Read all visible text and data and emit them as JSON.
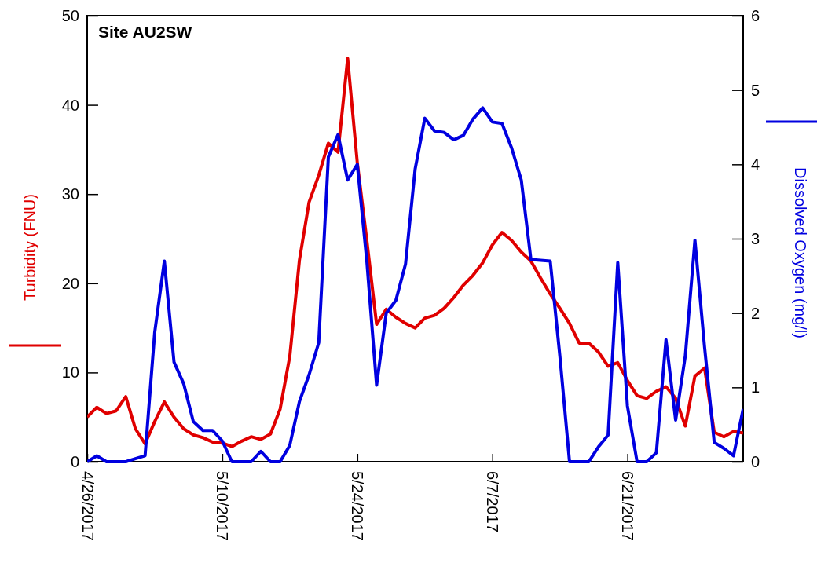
{
  "chart_data": {
    "type": "line",
    "title": "Site AU2SW",
    "ylabel": "Turbidity (FNU)",
    "y2label": "Dissolved Oxygen (mg/l)",
    "x": [
      "2017-04-26",
      "2017-04-27",
      "2017-04-28",
      "2017-04-29",
      "2017-04-30",
      "2017-05-01",
      "2017-05-02",
      "2017-05-03",
      "2017-05-04",
      "2017-05-05",
      "2017-05-06",
      "2017-05-07",
      "2017-05-08",
      "2017-05-09",
      "2017-05-10",
      "2017-05-11",
      "2017-05-12",
      "2017-05-13",
      "2017-05-14",
      "2017-05-15",
      "2017-05-16",
      "2017-05-17",
      "2017-05-18",
      "2017-05-19",
      "2017-05-20",
      "2017-05-21",
      "2017-05-22",
      "2017-05-23",
      "2017-05-24",
      "2017-05-25",
      "2017-05-26",
      "2017-05-27",
      "2017-05-28",
      "2017-05-29",
      "2017-05-30",
      "2017-05-31",
      "2017-06-01",
      "2017-06-02",
      "2017-06-03",
      "2017-06-04",
      "2017-06-05",
      "2017-06-06",
      "2017-06-07",
      "2017-06-08",
      "2017-06-09",
      "2017-06-10",
      "2017-06-11",
      "2017-06-12",
      "2017-06-13",
      "2017-06-14",
      "2017-06-15",
      "2017-06-16",
      "2017-06-17",
      "2017-06-18",
      "2017-06-19",
      "2017-06-20",
      "2017-06-21",
      "2017-06-22",
      "2017-06-23",
      "2017-06-24",
      "2017-06-25",
      "2017-06-26",
      "2017-06-27",
      "2017-06-28",
      "2017-06-29",
      "2017-06-30",
      "2017-07-01",
      "2017-07-02",
      "2017-07-03"
    ],
    "series": [
      {
        "color": "#e00000",
        "values": [
          5.0,
          6.1,
          5.4,
          5.7,
          7.3,
          3.7,
          2.0,
          4.5,
          6.7,
          5.0,
          3.7,
          3.0,
          2.7,
          2.2,
          2.1,
          1.7,
          2.3,
          2.8,
          2.5,
          3.1,
          5.9,
          11.8,
          22.6,
          29.1,
          32.1,
          35.7,
          34.7,
          45.2,
          33.5,
          24.7,
          15.4,
          17.1,
          16.2,
          15.5,
          15.0,
          16.1,
          16.4,
          17.2,
          18.4,
          19.8,
          20.9,
          22.3,
          24.3,
          25.7,
          24.8,
          23.5,
          22.5,
          20.6,
          18.8,
          17.2,
          15.5,
          13.3,
          13.3,
          12.3,
          10.7,
          11.1,
          9.1,
          7.4,
          7.1,
          7.9,
          8.4,
          7.1,
          4.0,
          9.6,
          10.5,
          3.3,
          2.8,
          3.4,
          3.2
        ]
      },
      {
        "color": "#0000e0",
        "axis": "y2",
        "values": [
          0,
          0.08,
          0,
          0,
          0,
          0.04,
          0.08,
          1.74,
          2.7,
          1.34,
          1.05,
          0.54,
          0.42,
          0.42,
          0.28,
          0,
          0,
          0,
          0.14,
          0,
          0,
          0.22,
          0.81,
          1.17,
          1.6,
          4.1,
          4.4,
          3.79,
          4.0,
          2.68,
          1.03,
          2.0,
          2.17,
          2.66,
          3.94,
          4.62,
          4.45,
          4.43,
          4.33,
          4.39,
          4.61,
          4.76,
          4.57,
          4.55,
          4.22,
          3.79,
          2.72,
          2.71,
          2.7,
          1.42,
          0,
          0,
          0,
          0.2,
          0.36,
          2.68,
          0.75,
          0,
          0,
          0.12,
          1.64,
          0.56,
          1.42,
          2.98,
          1.54,
          0.26,
          0.18,
          0.08,
          0.71
        ]
      }
    ],
    "xlim": [
      "2017-04-26",
      "2017-07-03"
    ],
    "xticks": [
      {
        "value": "2017-04-26",
        "label": "4/26/2017"
      },
      {
        "value": "2017-05-10",
        "label": "5/10/2017"
      },
      {
        "value": "2017-05-24",
        "label": "5/24/2017"
      },
      {
        "value": "2017-06-07",
        "label": "6/7/2017"
      },
      {
        "value": "2017-06-21",
        "label": "6/21/2017"
      }
    ],
    "ylim": [
      0,
      50
    ],
    "yticks": [
      0,
      10,
      20,
      30,
      40,
      50
    ],
    "y2lim": [
      0,
      6
    ],
    "y2ticks": [
      0,
      1,
      2,
      3,
      4,
      5,
      6
    ],
    "marker": "none",
    "line_style": "solid"
  }
}
